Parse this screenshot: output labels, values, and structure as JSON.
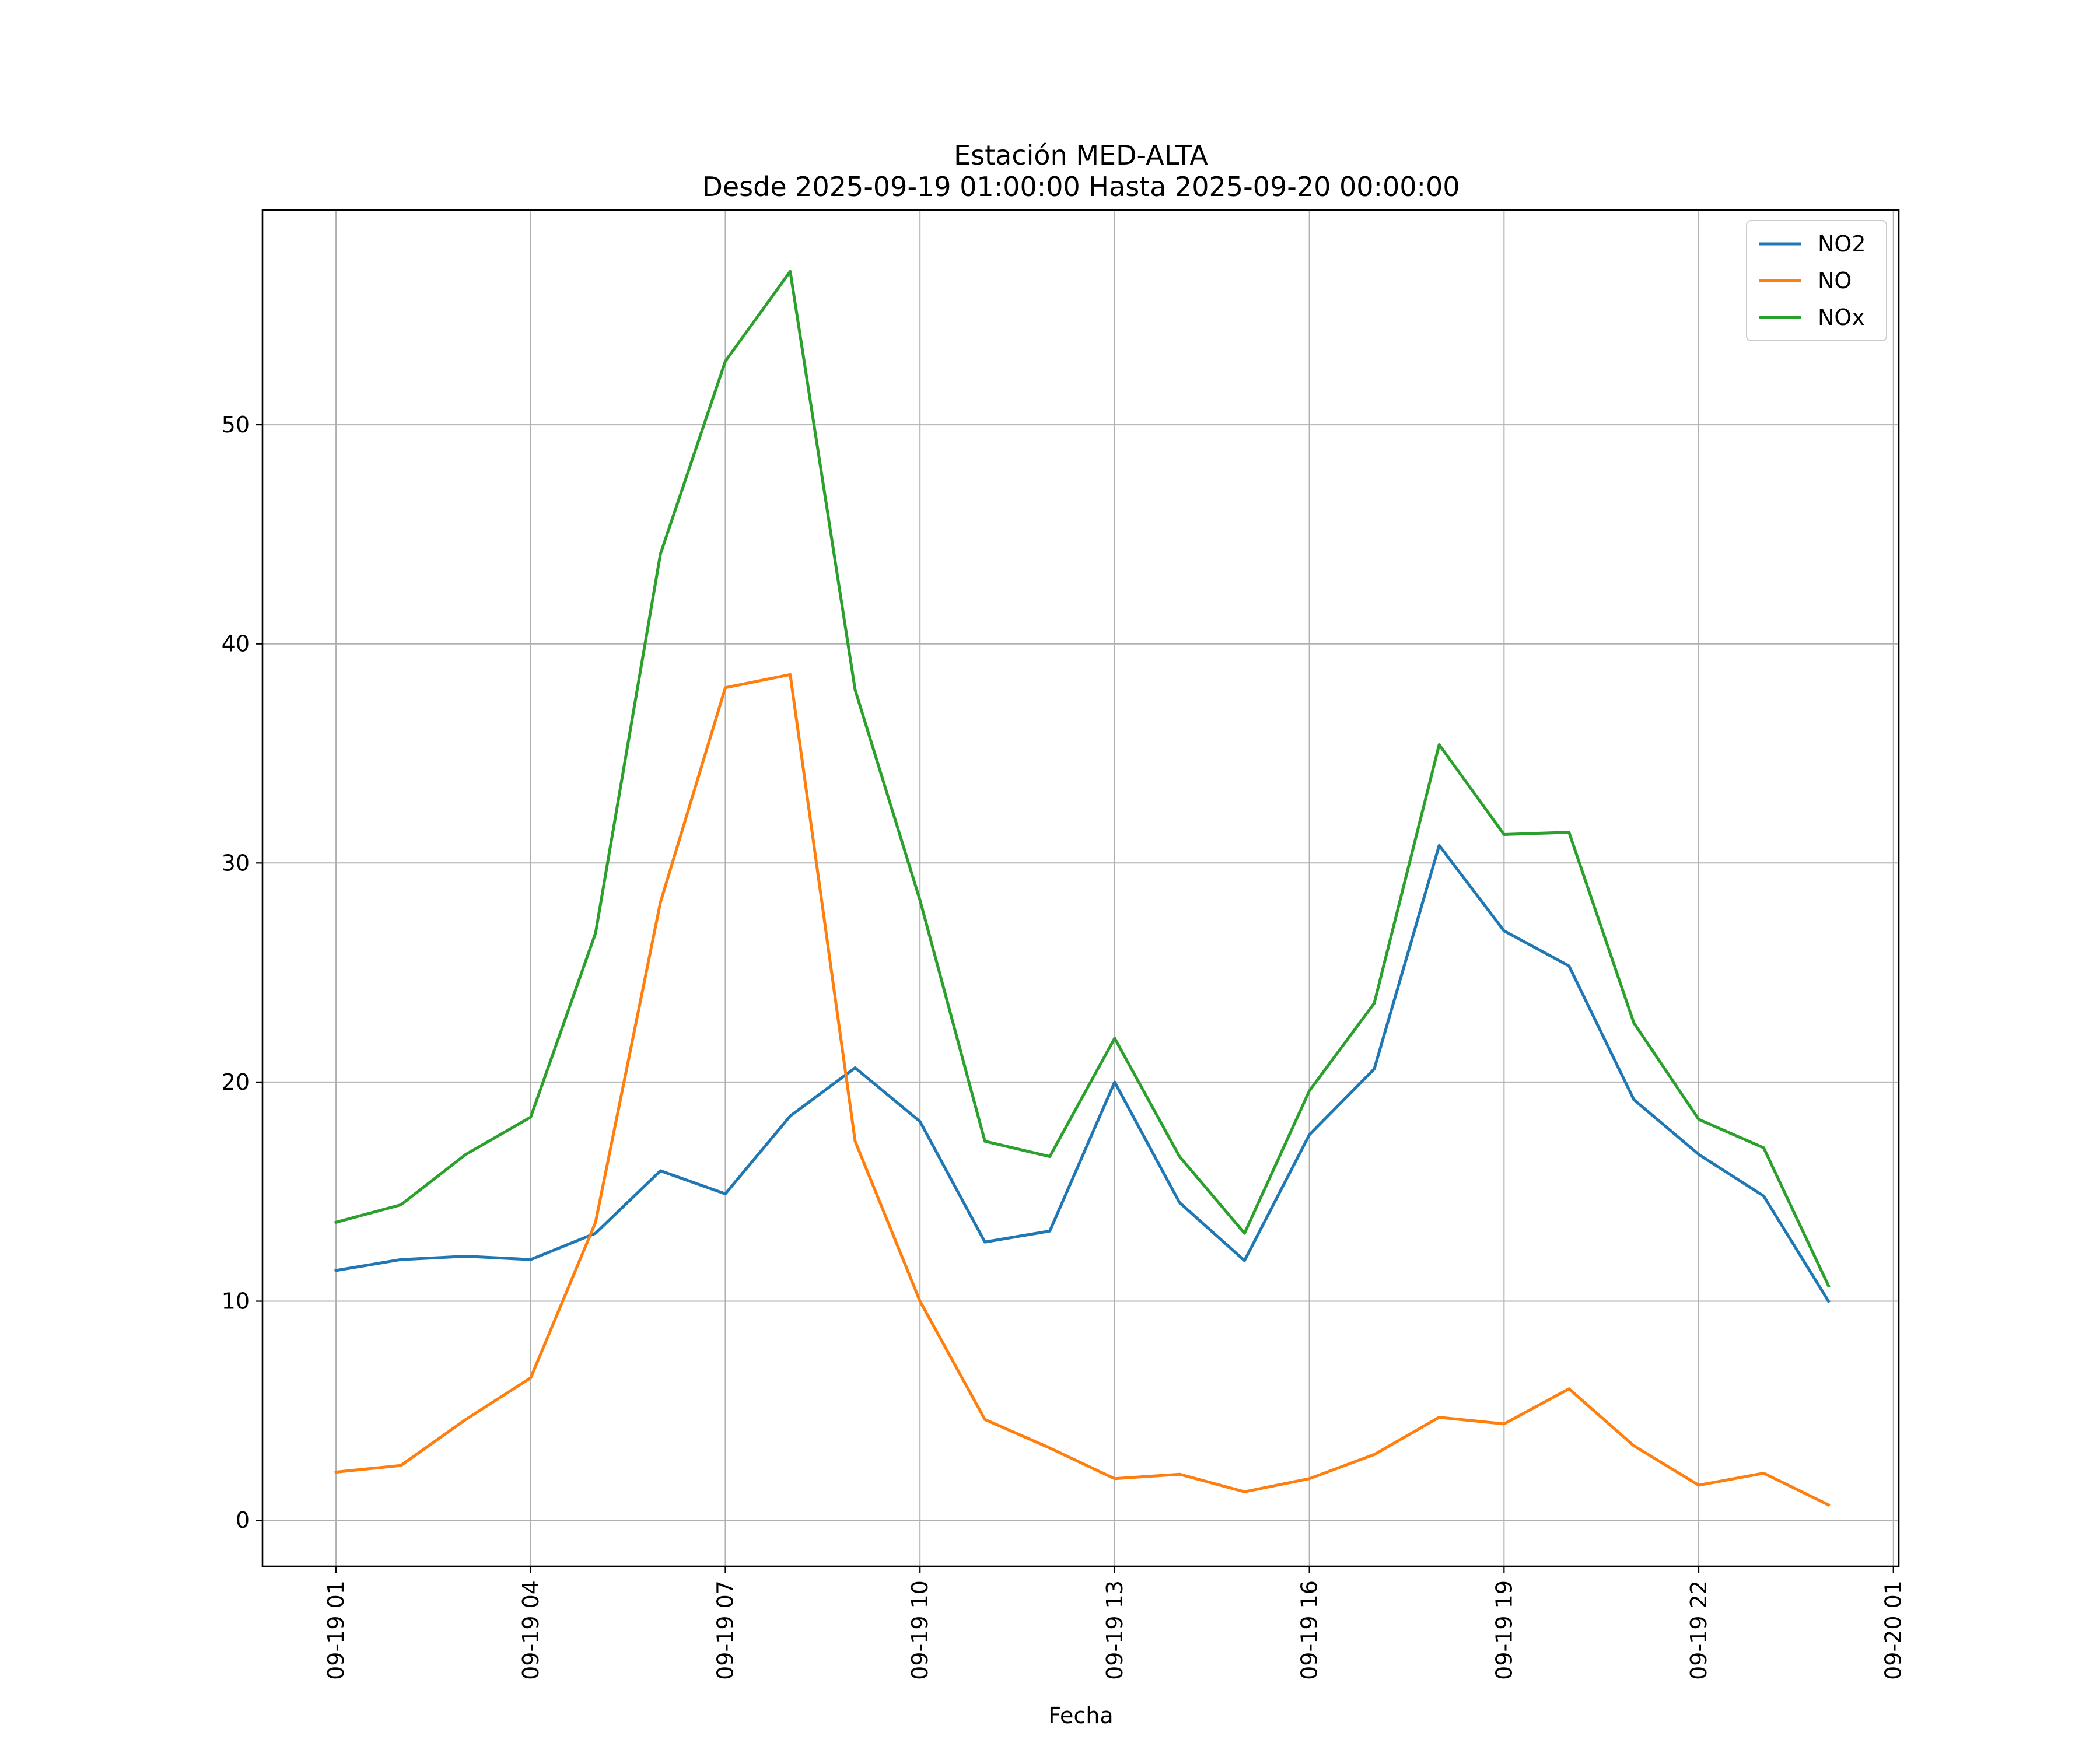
{
  "chart_data": {
    "type": "line",
    "title": "Estación MED-ALTA",
    "subtitle": "Desde 2025-09-19 01:00:00 Hasta 2025-09-20 00:00:00",
    "xlabel": "Fecha",
    "ylabel": "",
    "x": [
      "2025-09-19 01:00",
      "2025-09-19 02:00",
      "2025-09-19 03:00",
      "2025-09-19 04:00",
      "2025-09-19 05:00",
      "2025-09-19 06:00",
      "2025-09-19 07:00",
      "2025-09-19 08:00",
      "2025-09-19 09:00",
      "2025-09-19 10:00",
      "2025-09-19 11:00",
      "2025-09-19 12:00",
      "2025-09-19 13:00",
      "2025-09-19 14:00",
      "2025-09-19 15:00",
      "2025-09-19 16:00",
      "2025-09-19 17:00",
      "2025-09-19 18:00",
      "2025-09-19 19:00",
      "2025-09-19 20:00",
      "2025-09-19 21:00",
      "2025-09-19 22:00",
      "2025-09-19 23:00",
      "2025-09-20 00:00"
    ],
    "xlim": [
      "2025-09-18 23:52",
      "2025-09-20 01:05"
    ],
    "ylim": [
      -2.1,
      59.8
    ],
    "xticks": [
      "09-19 01",
      "09-19 04",
      "09-19 07",
      "09-19 10",
      "09-19 13",
      "09-19 16",
      "09-19 19",
      "09-19 22",
      "09-20 01"
    ],
    "xtick_values": [
      "2025-09-19 01:00",
      "2025-09-19 04:00",
      "2025-09-19 07:00",
      "2025-09-19 10:00",
      "2025-09-19 13:00",
      "2025-09-19 16:00",
      "2025-09-19 19:00",
      "2025-09-19 22:00",
      "2025-09-20 01:00"
    ],
    "yticks": [
      0,
      10,
      20,
      30,
      40,
      50
    ],
    "grid": true,
    "legend_position": "top-right",
    "series": [
      {
        "name": "NO2",
        "color": "#1f77b4",
        "values": [
          11.4,
          11.9,
          12.05,
          11.9,
          13.1,
          15.95,
          14.9,
          18.45,
          20.65,
          18.2,
          12.7,
          13.2,
          20.0,
          14.5,
          11.85,
          17.6,
          20.6,
          30.8,
          26.9,
          25.3,
          19.2,
          16.7,
          14.8,
          10.0
        ]
      },
      {
        "name": "NO",
        "color": "#ff7f0e",
        "values": [
          2.2,
          2.5,
          4.6,
          6.5,
          13.6,
          28.2,
          38.0,
          38.6,
          17.3,
          10.0,
          4.6,
          3.3,
          1.9,
          2.1,
          1.3,
          1.9,
          3.0,
          4.7,
          4.4,
          6.0,
          3.4,
          1.6,
          2.15,
          0.7
        ]
      },
      {
        "name": "NOx",
        "color": "#2ca02c",
        "values": [
          13.6,
          14.4,
          16.7,
          18.4,
          26.8,
          44.1,
          52.9,
          57.0,
          37.9,
          28.3,
          17.3,
          16.6,
          22.0,
          16.6,
          13.1,
          19.6,
          23.6,
          35.4,
          31.3,
          31.4,
          22.7,
          18.3,
          17.0,
          10.7
        ]
      }
    ]
  }
}
